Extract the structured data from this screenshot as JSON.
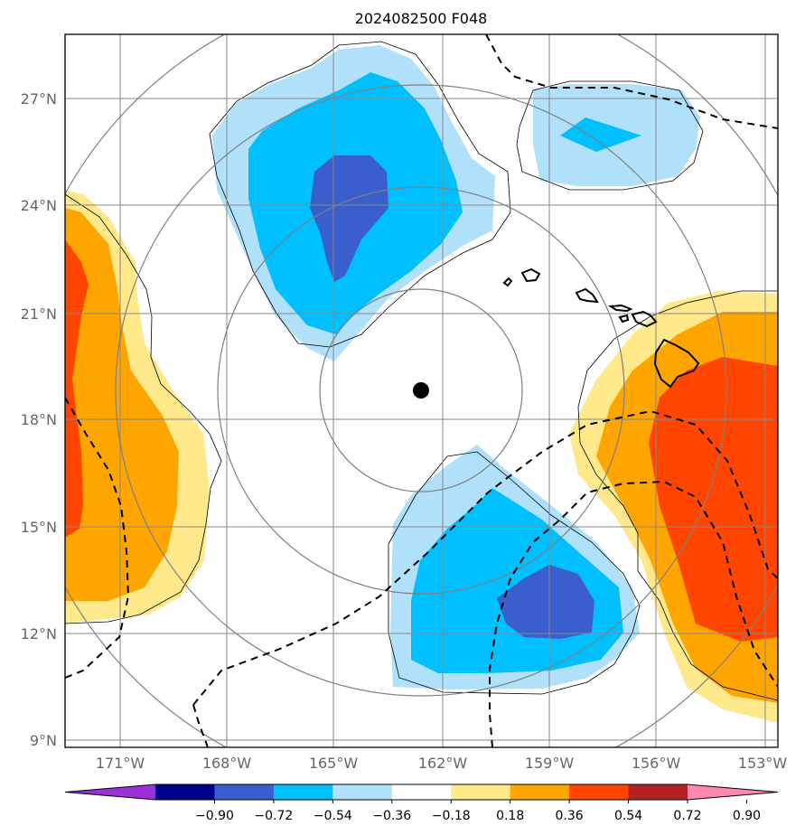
{
  "title": "2024082500 F048",
  "lat_labels": [
    "27°N",
    "24°N",
    "21°N",
    "18°N",
    "15°N",
    "12°N",
    "9°N"
  ],
  "lon_labels": [
    "171°W",
    "168°W",
    "165°W",
    "162°W",
    "159°W",
    "156°W",
    "153°W"
  ],
  "colorbar": {
    "tick_labels": [
      "−0.90",
      "−0.72",
      "−0.54",
      "−0.36",
      "−0.18",
      "0.18",
      "0.36",
      "0.54",
      "0.72",
      "0.90"
    ],
    "colors": [
      "#9b30d9",
      "#00008b",
      "#3a5fcd",
      "#00bfff",
      "#b0e0fa",
      "#ffffff",
      "#ffe98a",
      "#ffa500",
      "#ff4500",
      "#b22222",
      "#ff88b0"
    ]
  },
  "colors": {
    "dark_blue": "#3a5fcd",
    "mid_blue": "#00bfff",
    "light_blue": "#b0e0fa",
    "light_yellow": "#ffe98a",
    "orange": "#ffa500",
    "red_orange": "#ff4500"
  },
  "storm_center": {
    "lat": 18.8,
    "lon": "162.6°W"
  }
}
